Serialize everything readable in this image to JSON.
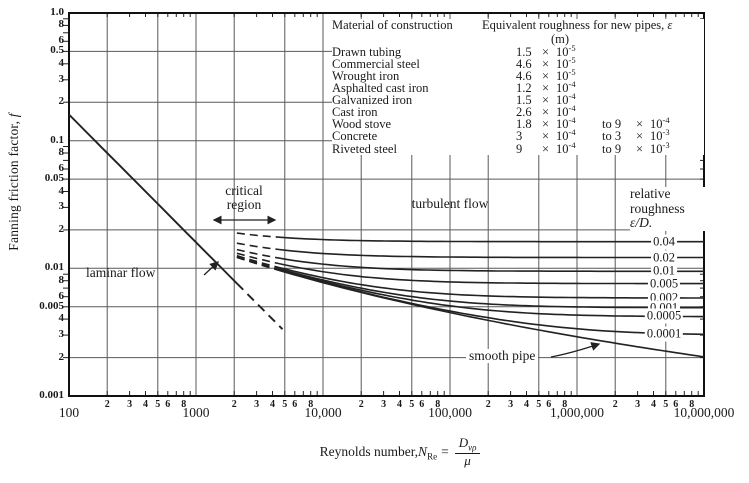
{
  "titles": {
    "y_prefix": "Fanning friction factor, ",
    "y_symbol": "f",
    "x_prefix": "Reynolds number, ",
    "x_n": "N",
    "x_n_sub": "Re",
    "x_eq": "=",
    "x_num": "D",
    "x_num_sub": "vρ",
    "x_den": "μ"
  },
  "annotations": {
    "critical_region": "critical\nregion",
    "turbulent_flow": "turbulent flow",
    "laminar_flow": "laminar flow",
    "smooth_pipe": "smooth pipe",
    "relative_roughness": "relative roughness",
    "rel_rough_symbol": "ε/D."
  },
  "table": {
    "col1_header": "Material of construction",
    "col2_header": "Equivalent roughness for new pipes, ",
    "col2_symbol": "ε",
    "unit": "(m)",
    "times": "×",
    "base": "10",
    "rows": [
      {
        "material": "Drawn tubing",
        "c": "1.5",
        "exp": "-5",
        "to_c": "",
        "to_exp": ""
      },
      {
        "material": "Commercial steel",
        "c": "4.6",
        "exp": "-5",
        "to_c": "",
        "to_exp": ""
      },
      {
        "material": "Wrought iron",
        "c": "4.6",
        "exp": "-5",
        "to_c": "",
        "to_exp": ""
      },
      {
        "material": "Asphalted cast iron",
        "c": "1.2",
        "exp": "-4",
        "to_c": "",
        "to_exp": ""
      },
      {
        "material": "Galvanized iron",
        "c": "1.5",
        "exp": "-4",
        "to_c": "",
        "to_exp": ""
      },
      {
        "material": "Cast iron",
        "c": "2.6",
        "exp": "-4",
        "to_c": "",
        "to_exp": ""
      },
      {
        "material": "Wood stove",
        "c": "1.8",
        "exp": "-4",
        "to_c": "to 9",
        "to_exp": "-4"
      },
      {
        "material": "Concrete",
        "c": "3",
        "exp": "-4",
        "to_c": "to 3",
        "to_exp": "-3"
      },
      {
        "material": "Riveted steel",
        "c": "9",
        "exp": "-4",
        "to_c": "to 9",
        "to_exp": "-3"
      }
    ]
  },
  "chart_data": {
    "type": "line",
    "x_axis": {
      "title": "Reynolds number, N_Re = D v ρ / μ",
      "scale": "log",
      "range": [
        100,
        10000000
      ],
      "decades": [
        {
          "label": "100",
          "value": 100
        },
        {
          "label": "1000",
          "value": 1000
        },
        {
          "label": "10,000",
          "value": 10000
        },
        {
          "label": "100,000",
          "value": 100000
        },
        {
          "label": "1,000,000",
          "value": 1000000
        },
        {
          "label": "10,000,000",
          "value": 10000000
        }
      ],
      "minor_tick_labels": [
        2,
        3,
        4,
        5,
        6,
        8
      ]
    },
    "y_axis": {
      "title": "Fanning friction factor, f",
      "scale": "log",
      "range": [
        0.001,
        1.0
      ],
      "ticks": [
        {
          "label": "1.0",
          "value": 1.0
        },
        {
          "label": "8",
          "value": 0.8
        },
        {
          "label": "6",
          "value": 0.6
        },
        {
          "label": "0.5",
          "value": 0.5
        },
        {
          "label": "4",
          "value": 0.4
        },
        {
          "label": "3",
          "value": 0.3
        },
        {
          "label": "2",
          "value": 0.2
        },
        {
          "label": "0.1",
          "value": 0.1
        },
        {
          "label": "8",
          "value": 0.08
        },
        {
          "label": "6",
          "value": 0.06
        },
        {
          "label": "0.05",
          "value": 0.05
        },
        {
          "label": "4",
          "value": 0.04
        },
        {
          "label": "3",
          "value": 0.03
        },
        {
          "label": "2",
          "value": 0.02
        },
        {
          "label": "0.01",
          "value": 0.01
        },
        {
          "label": "8",
          "value": 0.008
        },
        {
          "label": "6",
          "value": 0.006
        },
        {
          "label": "0.005",
          "value": 0.005
        },
        {
          "label": "4",
          "value": 0.004
        },
        {
          "label": "3",
          "value": 0.003
        },
        {
          "label": "2",
          "value": 0.002
        },
        {
          "label": "0.001",
          "value": 0.001
        }
      ]
    },
    "grid_lines_at_mantissa": [
      1,
      2,
      5
    ],
    "critical_region_re": [
      2100,
      4500
    ],
    "series": [
      {
        "name": "laminar flow",
        "formula": "f = 16/Re",
        "re_start": 100,
        "re_solid_end": 2100,
        "re_end": 4800,
        "style": "solid then dashed"
      },
      {
        "name": "smooth pipe",
        "relative_roughness": 0,
        "label": "",
        "f_at_re_1e7": 0.0022
      },
      {
        "name": "eD=0.04",
        "relative_roughness": 0.04,
        "label": "0.04",
        "f_at_re_1e7": 0.0162
      },
      {
        "name": "eD=0.02",
        "relative_roughness": 0.02,
        "label": "0.02",
        "f_at_re_1e7": 0.0122
      },
      {
        "name": "eD=0.01",
        "relative_roughness": 0.01,
        "label": "0.01",
        "f_at_re_1e7": 0.0095
      },
      {
        "name": "eD=0.005",
        "relative_roughness": 0.005,
        "label": "0.005",
        "f_at_re_1e7": 0.0076
      },
      {
        "name": "eD=0.002",
        "relative_roughness": 0.002,
        "label": "0.002",
        "f_at_re_1e7": 0.0059
      },
      {
        "name": "eD=0.001",
        "relative_roughness": 0.001,
        "label": "0.001",
        "f_at_re_1e7": 0.0049
      },
      {
        "name": "eD=0.0005",
        "relative_roughness": 0.0005,
        "label": "0.0005",
        "f_at_re_1e7": 0.0042
      },
      {
        "name": "eD=0.0001",
        "relative_roughness": 0.0001,
        "label": "0.0001",
        "f_at_re_1e7": 0.0031
      }
    ]
  }
}
